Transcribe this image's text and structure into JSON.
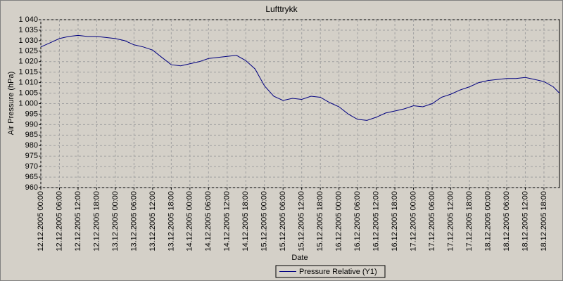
{
  "chart_data": {
    "type": "line",
    "title": "Lufttrykk",
    "x_label": "Date",
    "y_label": "Air Pressure (hPa)",
    "x": [
      "12.12.2005 00:00",
      "12.12.2005 03:00",
      "12.12.2005 06:00",
      "12.12.2005 09:00",
      "12.12.2005 12:00",
      "12.12.2005 15:00",
      "12.12.2005 18:00",
      "12.12.2005 21:00",
      "13.12.2005 00:00",
      "13.12.2005 03:00",
      "13.12.2005 06:00",
      "13.12.2005 09:00",
      "13.12.2005 12:00",
      "13.12.2005 15:00",
      "13.12.2005 18:00",
      "13.12.2005 21:00",
      "14.12.2005 00:00",
      "14.12.2005 03:00",
      "14.12.2005 06:00",
      "14.12.2005 09:00",
      "14.12.2005 12:00",
      "14.12.2005 15:00",
      "14.12.2005 18:00",
      "14.12.2005 21:00",
      "15.12.2005 00:00",
      "15.12.2005 03:00",
      "15.12.2005 06:00",
      "15.12.2005 09:00",
      "15.12.2005 12:00",
      "15.12.2005 15:00",
      "15.12.2005 18:00",
      "15.12.2005 21:00",
      "16.12.2005 00:00",
      "16.12.2005 03:00",
      "16.12.2005 06:00",
      "16.12.2005 09:00",
      "16.12.2005 12:00",
      "16.12.2005 15:00",
      "16.12.2005 18:00",
      "16.12.2005 21:00",
      "17.12.2005 00:00",
      "17.12.2005 03:00",
      "17.12.2005 06:00",
      "17.12.2005 09:00",
      "17.12.2005 12:00",
      "17.12.2005 15:00",
      "17.12.2005 18:00",
      "17.12.2005 21:00",
      "18.12.2005 00:00",
      "18.12.2005 03:00",
      "18.12.2005 06:00",
      "18.12.2005 09:00",
      "18.12.2005 12:00",
      "18.12.2005 15:00",
      "18.12.2005 18:00",
      "18.12.2005 21:00",
      "18.12.2005 23:00"
    ],
    "series": [
      {
        "name": "Pressure Relative (Y1)",
        "color": "#000080",
        "values": [
          1027,
          1029,
          1031,
          1032,
          1032.5,
          1032,
          1032,
          1031.5,
          1031,
          1030,
          1028,
          1027,
          1025.5,
          1022,
          1018.5,
          1018,
          1019,
          1020,
          1021.5,
          1022,
          1022.5,
          1023,
          1020.5,
          1016.5,
          1008.5,
          1003.5,
          1001.5,
          1002.5,
          1002,
          1003.5,
          1003,
          1000.5,
          998.5,
          995,
          992.5,
          992,
          993.5,
          995.5,
          996.5,
          997.5,
          999,
          998.5,
          1000,
          1003,
          1004.5,
          1006.5,
          1008,
          1010,
          1011,
          1011.5,
          1012,
          1012,
          1012.5,
          1011.5,
          1010.5,
          1008,
          1005
        ]
      }
    ],
    "xlim": [
      "12.12.2005 00:00",
      "18.12.2005 23:00"
    ],
    "xticks": [
      "12.12.2005 00:00",
      "12.12.2005 06:00",
      "12.12.2005 12:00",
      "12.12.2005 18:00",
      "13.12.2005 00:00",
      "13.12.2005 06:00",
      "13.12.2005 12:00",
      "13.12.2005 18:00",
      "14.12.2005 00:00",
      "14.12.2005 06:00",
      "14.12.2005 12:00",
      "14.12.2005 18:00",
      "15.12.2005 00:00",
      "15.12.2005 06:00",
      "15.12.2005 12:00",
      "15.12.2005 18:00",
      "16.12.2005 00:00",
      "16.12.2005 06:00",
      "16.12.2005 12:00",
      "16.12.2005 18:00",
      "17.12.2005 00:00",
      "17.12.2005 06:00",
      "17.12.2005 12:00",
      "17.12.2005 18:00",
      "18.12.2005 00:00",
      "18.12.2005 06:00",
      "18.12.2005 12:00",
      "18.12.2005 18:00"
    ],
    "ylim": [
      960,
      1040
    ],
    "yticks": [
      960,
      965,
      970,
      975,
      980,
      985,
      990,
      995,
      {
        "value": 1000,
        "label": "1 000"
      },
      {
        "value": 1005,
        "label": "1 005"
      },
      {
        "value": 1010,
        "label": "1 010"
      },
      {
        "value": 1015,
        "label": "1 015"
      },
      {
        "value": 1020,
        "label": "1 020"
      },
      {
        "value": 1025,
        "label": "1 025"
      },
      {
        "value": 1030,
        "label": "1 030"
      },
      {
        "value": 1035,
        "label": "1 035"
      },
      {
        "value": 1040,
        "label": "1 040"
      }
    ],
    "grid": true,
    "legend": "bottom"
  }
}
